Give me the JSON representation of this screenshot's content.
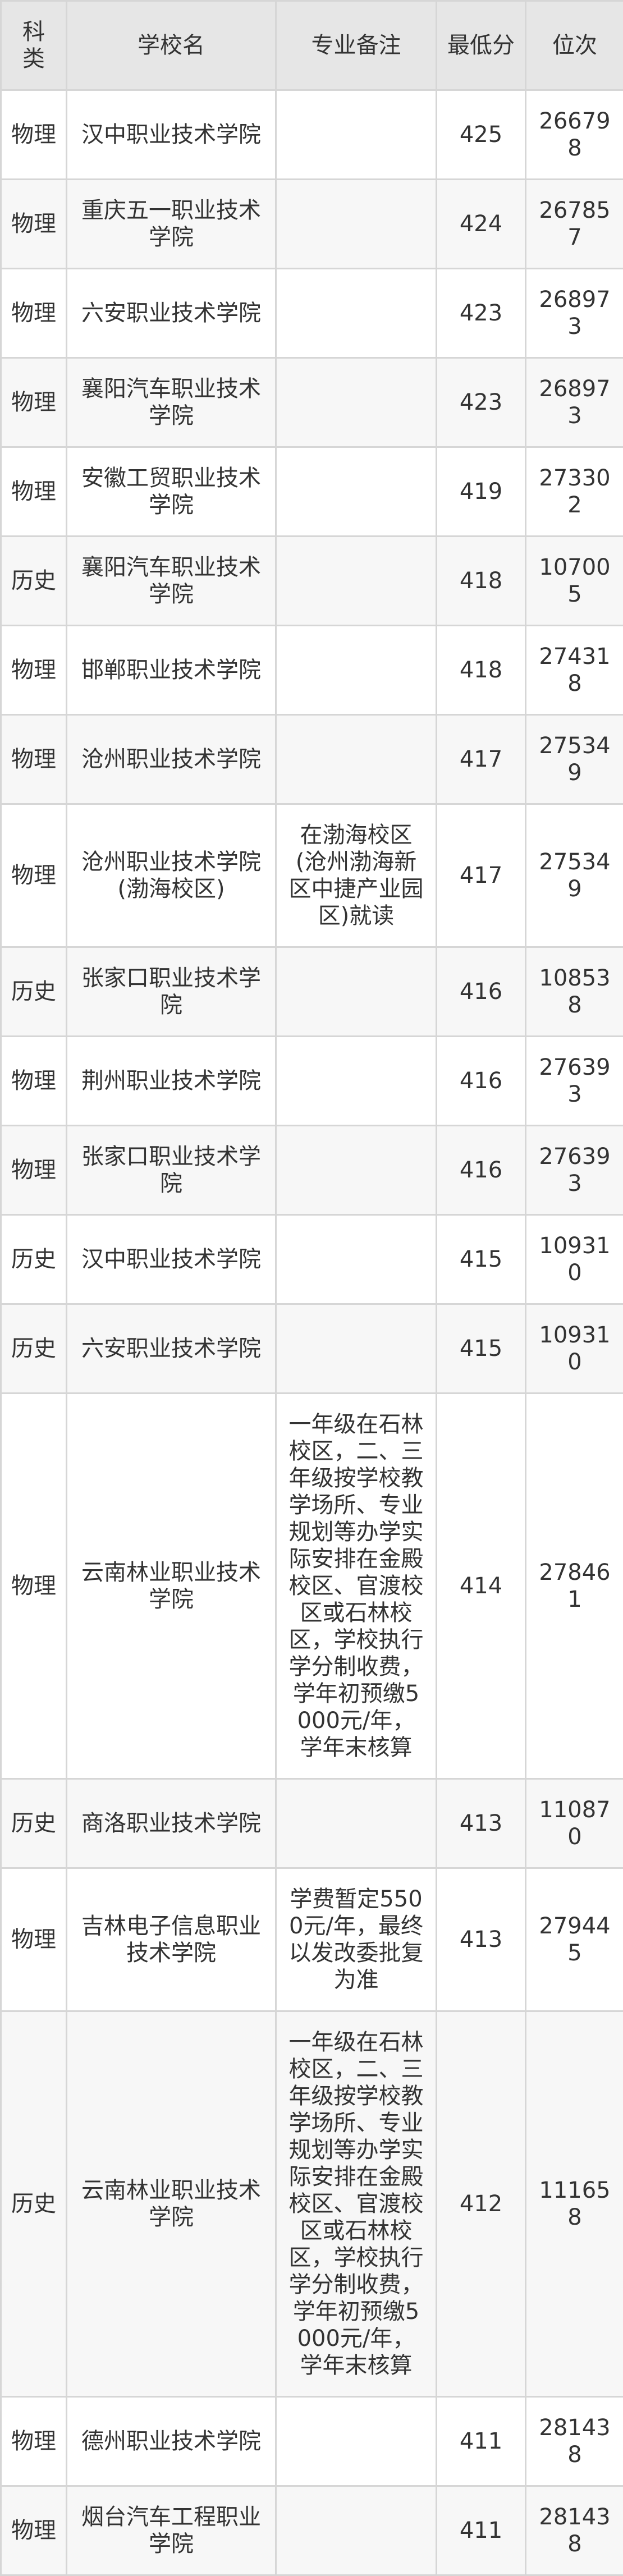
{
  "table": {
    "headers": [
      "科类",
      "学校名",
      "专业备注",
      "最低分",
      "位次"
    ],
    "rows": [
      {
        "kind": "物理",
        "school": "汉中职业技术学院",
        "note": "",
        "score": "425",
        "rank": "266798"
      },
      {
        "kind": "物理",
        "school": "重庆五一职业技术学院",
        "note": "",
        "score": "424",
        "rank": "267857"
      },
      {
        "kind": "物理",
        "school": "六安职业技术学院",
        "note": "",
        "score": "423",
        "rank": "268973"
      },
      {
        "kind": "物理",
        "school": "襄阳汽车职业技术学院",
        "note": "",
        "score": "423",
        "rank": "268973"
      },
      {
        "kind": "物理",
        "school": "安徽工贸职业技术学院",
        "note": "",
        "score": "419",
        "rank": "273302"
      },
      {
        "kind": "历史",
        "school": "襄阳汽车职业技术学院",
        "note": "",
        "score": "418",
        "rank": "107005"
      },
      {
        "kind": "物理",
        "school": "邯郸职业技术学院",
        "note": "",
        "score": "418",
        "rank": "274318"
      },
      {
        "kind": "物理",
        "school": "沧州职业技术学院",
        "note": "",
        "score": "417",
        "rank": "275349"
      },
      {
        "kind": "物理",
        "school": "沧州职业技术学院(渤海校区)",
        "note": "在渤海校区(沧州渤海新区中捷产业园区)就读",
        "score": "417",
        "rank": "275349"
      },
      {
        "kind": "历史",
        "school": "张家口职业技术学院",
        "note": "",
        "score": "416",
        "rank": "108538"
      },
      {
        "kind": "物理",
        "school": "荆州职业技术学院",
        "note": "",
        "score": "416",
        "rank": "276393"
      },
      {
        "kind": "物理",
        "school": "张家口职业技术学院",
        "note": "",
        "score": "416",
        "rank": "276393"
      },
      {
        "kind": "历史",
        "school": "汉中职业技术学院",
        "note": "",
        "score": "415",
        "rank": "109310"
      },
      {
        "kind": "历史",
        "school": "六安职业技术学院",
        "note": "",
        "score": "415",
        "rank": "109310"
      },
      {
        "kind": "物理",
        "school": "云南林业职业技术学院",
        "note": "一年级在石林校区，二、三年级按学校教学场所、专业规划等办学实际安排在金殿校区、官渡校区或石林校区，学校执行学分制收费，学年初预缴5000元/年，学年末核算",
        "score": "414",
        "rank": "278461"
      },
      {
        "kind": "历史",
        "school": "商洛职业技术学院",
        "note": "",
        "score": "413",
        "rank": "110870"
      },
      {
        "kind": "物理",
        "school": "吉林电子信息职业技术学院",
        "note": "学费暂定5500元/年，最终以发改委批复为准",
        "score": "413",
        "rank": "279445"
      },
      {
        "kind": "历史",
        "school": "云南林业职业技术学院",
        "note": "一年级在石林校区，二、三年级按学校教学场所、专业规划等办学实际安排在金殿校区、官渡校区或石林校区，学校执行学分制收费，学年初预缴5000元/年，学年末核算",
        "score": "412",
        "rank": "111658"
      },
      {
        "kind": "物理",
        "school": "德州职业技术学院",
        "note": "",
        "score": "411",
        "rank": "281438"
      },
      {
        "kind": "物理",
        "school": "烟台汽车工程职业学院",
        "note": "",
        "score": "411",
        "rank": "281438"
      }
    ]
  }
}
